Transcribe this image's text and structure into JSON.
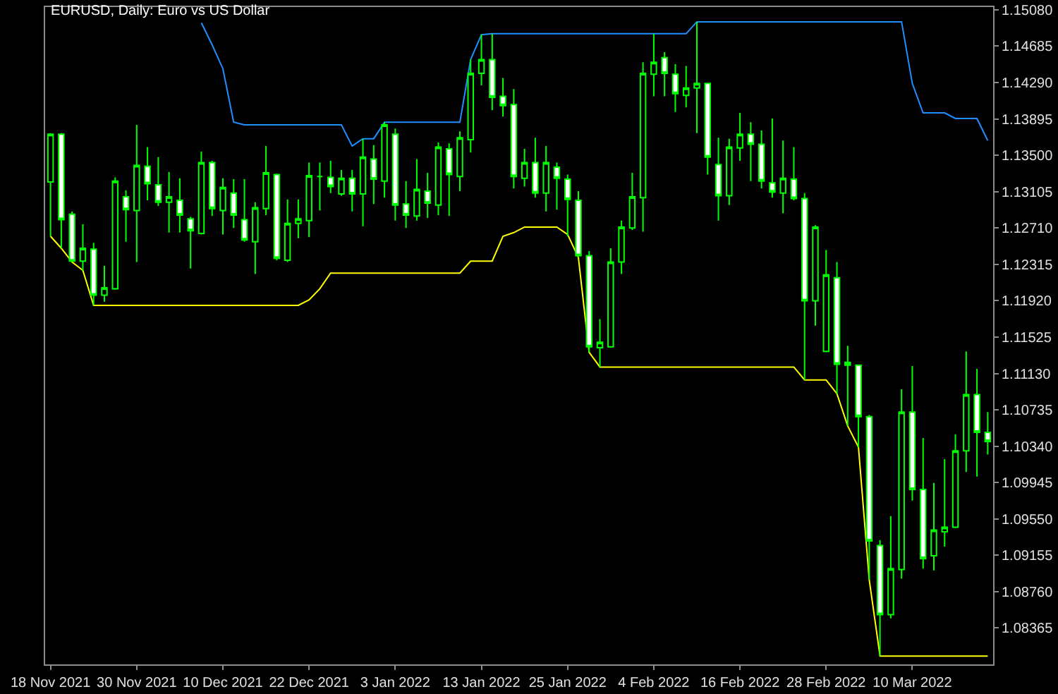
{
  "chart_data": {
    "type": "candlestick",
    "title": "EURUSD, Daily: Euro vs US Dollar",
    "categories": [
      "18 Nov 2021",
      null,
      null,
      null,
      null,
      null,
      null,
      null,
      "30 Nov 2021",
      null,
      null,
      null,
      null,
      null,
      null,
      null,
      "10 Dec 2021",
      null,
      null,
      null,
      null,
      null,
      null,
      null,
      "22 Dec 2021",
      null,
      null,
      null,
      null,
      null,
      null,
      null,
      "3 Jan 2022",
      null,
      null,
      null,
      null,
      null,
      null,
      null,
      "13 Jan 2022",
      null,
      null,
      null,
      null,
      null,
      null,
      null,
      "25 Jan 2022",
      null,
      null,
      null,
      null,
      null,
      null,
      null,
      "4 Feb 2022",
      null,
      null,
      null,
      null,
      null,
      null,
      null,
      "16 Feb 2022",
      null,
      null,
      null,
      null,
      null,
      null,
      null,
      "28 Feb 2022",
      null,
      null,
      null,
      null,
      null,
      null,
      null,
      "10 Mar 2022",
      null,
      null,
      null,
      null,
      null,
      null,
      null
    ],
    "ohlc": [
      [
        1.1321,
        1.1374,
        1.1262,
        1.1373
      ],
      [
        1.1373,
        1.1374,
        1.1249,
        1.128
      ],
      [
        1.1286,
        1.1289,
        1.1234,
        1.1235
      ],
      [
        1.1235,
        1.1275,
        1.1225,
        1.1249
      ],
      [
        1.1248,
        1.1255,
        1.1187,
        1.1198
      ],
      [
        1.1198,
        1.123,
        1.1191,
        1.1206
      ],
      [
        1.1205,
        1.1326,
        1.1204,
        1.1322
      ],
      [
        1.1305,
        1.1312,
        1.1256,
        1.1291
      ],
      [
        1.129,
        1.1383,
        1.1234,
        1.1339
      ],
      [
        1.1338,
        1.1359,
        1.1301,
        1.1319
      ],
      [
        1.1318,
        1.1348,
        1.1295,
        1.1299
      ],
      [
        1.1299,
        1.1332,
        1.1266,
        1.1305
      ],
      [
        1.1301,
        1.1325,
        1.1266,
        1.1285
      ],
      [
        1.1281,
        1.1283,
        1.1227,
        1.1268
      ],
      [
        1.1265,
        1.1354,
        1.1264,
        1.1342
      ],
      [
        1.1342,
        1.1344,
        1.1284,
        1.1292
      ],
      [
        1.129,
        1.1325,
        1.1264,
        1.1315
      ],
      [
        1.1309,
        1.1324,
        1.1271,
        1.1285
      ],
      [
        1.128,
        1.1324,
        1.1256,
        1.1258
      ],
      [
        1.1256,
        1.1299,
        1.1221,
        1.1293
      ],
      [
        1.1292,
        1.136,
        1.1285,
        1.1331
      ],
      [
        1.1329,
        1.133,
        1.1236,
        1.1238
      ],
      [
        1.1236,
        1.1302,
        1.1234,
        1.1276
      ],
      [
        1.1276,
        1.1302,
        1.126,
        1.1281
      ],
      [
        1.1279,
        1.1342,
        1.1261,
        1.1328
      ],
      [
        1.1327,
        1.1342,
        1.129,
        1.1327
      ],
      [
        1.1326,
        1.1344,
        1.1309,
        1.1316
      ],
      [
        1.1308,
        1.1334,
        1.1306,
        1.1325
      ],
      [
        1.1325,
        1.1334,
        1.1289,
        1.1308
      ],
      [
        1.1308,
        1.1368,
        1.1273,
        1.1348
      ],
      [
        1.1346,
        1.1361,
        1.1297,
        1.1324
      ],
      [
        1.1322,
        1.1386,
        1.1304,
        1.1383
      ],
      [
        1.1373,
        1.1379,
        1.1279,
        1.1296
      ],
      [
        1.1297,
        1.1322,
        1.1271,
        1.1285
      ],
      [
        1.1284,
        1.1346,
        1.1279,
        1.1313
      ],
      [
        1.1311,
        1.1331,
        1.1282,
        1.1298
      ],
      [
        1.1296,
        1.1364,
        1.1285,
        1.1359
      ],
      [
        1.1357,
        1.1363,
        1.1284,
        1.1329
      ],
      [
        1.1327,
        1.1376,
        1.1311,
        1.1369
      ],
      [
        1.1367,
        1.1454,
        1.1353,
        1.1439
      ],
      [
        1.1439,
        1.1481,
        1.1426,
        1.1454
      ],
      [
        1.1454,
        1.1482,
        1.1399,
        1.1413
      ],
      [
        1.1414,
        1.1434,
        1.1392,
        1.1404
      ],
      [
        1.1405,
        1.1422,
        1.1314,
        1.1327
      ],
      [
        1.1325,
        1.1357,
        1.1316,
        1.1342
      ],
      [
        1.1342,
        1.1369,
        1.1304,
        1.1309
      ],
      [
        1.1309,
        1.136,
        1.1289,
        1.1342
      ],
      [
        1.1337,
        1.1342,
        1.1291,
        1.1325
      ],
      [
        1.1324,
        1.1329,
        1.1262,
        1.1302
      ],
      [
        1.1301,
        1.1311,
        1.1239,
        1.1241
      ],
      [
        1.1241,
        1.1246,
        1.1136,
        1.1142
      ],
      [
        1.1141,
        1.1172,
        1.112,
        1.1147
      ],
      [
        1.1142,
        1.1249,
        1.1141,
        1.1234
      ],
      [
        1.1234,
        1.1279,
        1.1221,
        1.1272
      ],
      [
        1.1271,
        1.1331,
        1.1269,
        1.1305
      ],
      [
        1.1304,
        1.1451,
        1.1267,
        1.1439
      ],
      [
        1.1438,
        1.1482,
        1.1414,
        1.1451
      ],
      [
        1.1456,
        1.1462,
        1.1414,
        1.1439
      ],
      [
        1.1438,
        1.1449,
        1.1397,
        1.1417
      ],
      [
        1.1415,
        1.1447,
        1.1402,
        1.1423
      ],
      [
        1.1423,
        1.1495,
        1.1374,
        1.1428
      ],
      [
        1.1428,
        1.1428,
        1.1329,
        1.1348
      ],
      [
        1.134,
        1.1369,
        1.1279,
        1.1306
      ],
      [
        1.1306,
        1.1368,
        1.1296,
        1.1359
      ],
      [
        1.1358,
        1.1396,
        1.1344,
        1.1373
      ],
      [
        1.1373,
        1.1386,
        1.1322,
        1.1362
      ],
      [
        1.1362,
        1.1377,
        1.1314,
        1.1322
      ],
      [
        1.132,
        1.139,
        1.1304,
        1.131
      ],
      [
        1.1309,
        1.1366,
        1.1287,
        1.1325
      ],
      [
        1.1324,
        1.1359,
        1.1301,
        1.1303
      ],
      [
        1.1303,
        1.1309,
        1.1106,
        1.1192
      ],
      [
        1.1192,
        1.1274,
        1.1165,
        1.1272
      ],
      [
        1.1137,
        1.1247,
        1.1136,
        1.122
      ],
      [
        1.1217,
        1.1234,
        1.1091,
        1.1123
      ],
      [
        1.1125,
        1.1143,
        1.1056,
        1.1122
      ],
      [
        1.1122,
        1.1122,
        1.1033,
        1.1066
      ],
      [
        1.1066,
        1.1068,
        1.0889,
        1.0931
      ],
      [
        1.0926,
        1.0932,
        1.0806,
        1.0851
      ],
      [
        1.0851,
        1.0958,
        1.0847,
        1.0901
      ],
      [
        1.09,
        1.1096,
        1.089,
        1.1071
      ],
      [
        1.1071,
        1.1121,
        1.0975,
        1.0987
      ],
      [
        1.0987,
        1.1043,
        1.0901,
        1.0912
      ],
      [
        1.0915,
        1.0994,
        1.0899,
        1.0943
      ],
      [
        1.0941,
        1.102,
        1.0925,
        1.0946
      ],
      [
        1.0946,
        1.1047,
        1.0945,
        1.1029
      ],
      [
        1.1029,
        1.1137,
        1.1006,
        1.109
      ],
      [
        1.109,
        1.1118,
        1.1001,
        1.1049
      ],
      [
        1.1049,
        1.1071,
        1.1025,
        1.1039
      ]
    ],
    "color": "#00ff00",
    "colors": [
      "#000000",
      "#ffffff",
      "#ffffff",
      "#000000",
      "#ffffff",
      "#000000",
      "#000000",
      "#ffffff",
      "#000000",
      "#ffffff",
      "#ffffff",
      "#000000",
      "#ffffff",
      "#ffffff",
      "#000000",
      "#ffffff",
      "#000000",
      "#ffffff",
      "#ffffff",
      "#000000",
      "#000000",
      "#ffffff",
      "#000000",
      "#000000",
      "#000000",
      "#00ff00",
      "#ffffff",
      "#000000",
      "#ffffff",
      "#000000",
      "#ffffff",
      "#000000",
      "#ffffff",
      "#ffffff",
      "#000000",
      "#ffffff",
      "#000000",
      "#ffffff",
      "#000000",
      "#000000",
      "#000000",
      "#ffffff",
      "#ffffff",
      "#ffffff",
      "#000000",
      "#ffffff",
      "#000000",
      "#ffffff",
      "#ffffff",
      "#ffffff",
      "#ffffff",
      "#000000",
      "#000000",
      "#000000",
      "#000000",
      "#000000",
      "#000000",
      "#ffffff",
      "#ffffff",
      "#000000",
      "#000000",
      "#ffffff",
      "#ffffff",
      "#000000",
      "#000000",
      "#ffffff",
      "#ffffff",
      "#ffffff",
      "#000000",
      "#ffffff",
      "#ffffff",
      "#000000",
      "#000000",
      "#ffffff",
      "#00ff00",
      "#ffffff",
      "#ffffff",
      "#ffffff",
      "#000000",
      "#000000",
      "#ffffff",
      "#ffffff",
      "#000000",
      "#000000",
      "#000000",
      "#000000",
      "#ffffff",
      "#ffffff"
    ],
    "series": [
      {
        "type": "line",
        "color": "#1e90ff",
        "values": [
          null,
          null,
          null,
          null,
          null,
          null,
          null,
          null,
          null,
          null,
          null,
          null,
          null,
          null,
          1.1494,
          1.147,
          1.1444,
          1.1386,
          1.1383,
          1.1383,
          1.1383,
          1.1383,
          1.1383,
          1.1383,
          1.1383,
          1.1383,
          1.1383,
          1.1383,
          1.136,
          1.1368,
          1.1368,
          1.1386,
          1.1386,
          1.1386,
          1.1386,
          1.1386,
          1.1386,
          1.1386,
          1.1386,
          1.1454,
          1.1481,
          1.1482,
          1.1482,
          1.1482,
          1.1482,
          1.1482,
          1.1482,
          1.1482,
          1.1482,
          1.1482,
          1.1482,
          1.1482,
          1.1482,
          1.1482,
          1.1482,
          1.1482,
          1.1482,
          1.1482,
          1.1482,
          1.1482,
          1.1495,
          1.1495,
          1.1495,
          1.1495,
          1.1495,
          1.1495,
          1.1495,
          1.1495,
          1.1495,
          1.1495,
          1.1495,
          1.1495,
          1.1495,
          1.1495,
          1.1495,
          1.1495,
          1.1495,
          1.1495,
          1.1495,
          1.1495,
          1.1428,
          1.1396,
          1.1396,
          1.1396,
          1.139,
          1.139,
          1.139,
          1.1366
        ]
      },
      {
        "type": "line",
        "color": "#ffff00",
        "values": [
          1.1262,
          1.1249,
          1.1234,
          1.1225,
          1.1187,
          1.1187,
          1.1187,
          1.1187,
          1.1187,
          1.1187,
          1.1187,
          1.1187,
          1.1187,
          1.1187,
          1.1187,
          1.1187,
          1.1187,
          1.1187,
          1.1187,
          1.1187,
          1.1187,
          1.1187,
          1.1187,
          1.1187,
          1.1193,
          1.1205,
          1.1222,
          1.1222,
          1.1222,
          1.1222,
          1.1222,
          1.1222,
          1.1222,
          1.1222,
          1.1222,
          1.1222,
          1.1222,
          1.1222,
          1.1222,
          1.1235,
          1.1235,
          1.1235,
          1.1262,
          1.1266,
          1.1272,
          1.1272,
          1.1272,
          1.1272,
          1.1264,
          1.1239,
          1.1136,
          1.112,
          1.112,
          1.112,
          1.112,
          1.112,
          1.112,
          1.112,
          1.112,
          1.112,
          1.112,
          1.112,
          1.112,
          1.112,
          1.112,
          1.112,
          1.112,
          1.112,
          1.112,
          1.112,
          1.1106,
          1.1106,
          1.1106,
          1.1091,
          1.1056,
          1.1033,
          1.0889,
          1.0806,
          1.0806,
          1.0806,
          1.0806,
          1.0806,
          1.0806,
          1.0806,
          1.0806,
          1.0806,
          1.0806,
          1.0806
        ]
      }
    ],
    "ylim": [
      1.0797,
      1.1511
    ],
    "yticks": [
      {
        "value": 1.1508,
        "label": "1.15080"
      },
      1.14685,
      {
        "value": 1.1429,
        "label": "1.14290"
      },
      1.13895,
      {
        "value": 1.135,
        "label": "1.13500"
      },
      1.13105,
      {
        "value": 1.1271,
        "label": "1.12710"
      },
      1.12315,
      {
        "value": 1.1192,
        "label": "1.11920"
      },
      1.11525,
      {
        "value": 1.1113,
        "label": "1.11130"
      },
      1.10735,
      {
        "value": 1.1034,
        "label": "1.10340"
      },
      1.09945,
      {
        "value": 1.0955,
        "label": "1.09550"
      },
      1.09155,
      {
        "value": 1.0876,
        "label": "1.08760"
      },
      1.08365
    ]
  }
}
